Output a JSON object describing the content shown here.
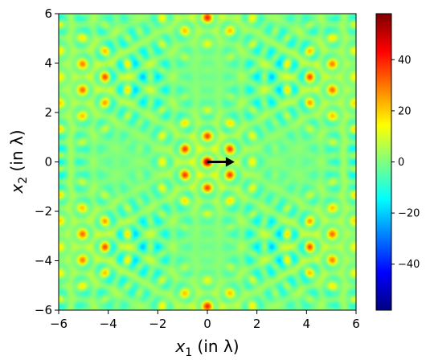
{
  "chart_data": {
    "type": "heatmap",
    "x_label": {
      "main": "x",
      "sub": "1",
      "unit": " (in λ)"
    },
    "y_label": {
      "main": "x",
      "sub": "2",
      "unit": " (in λ)"
    },
    "xlim": [
      -6,
      6
    ],
    "ylim": [
      -6,
      6
    ],
    "x_ticks": [
      -6,
      -4,
      -2,
      0,
      2,
      4,
      6
    ],
    "y_ticks": [
      -6,
      -4,
      -2,
      0,
      2,
      4,
      6
    ],
    "x_tick_labels": [
      "−6",
      "−4",
      "−2",
      "0",
      "2",
      "4",
      "6"
    ],
    "y_tick_labels": [
      "−6",
      "−4",
      "−2",
      "0",
      "2",
      "4",
      "6"
    ],
    "colormap": "jet",
    "colorbar": {
      "vmin": -58,
      "vmax": 58,
      "ticks": [
        -40,
        -20,
        0,
        20,
        40
      ],
      "tick_labels": [
        "−40",
        "−20",
        "0",
        "20",
        "40"
      ]
    },
    "arrow": {
      "from": [
        0,
        0
      ],
      "to": [
        1.1,
        0
      ],
      "color": "#000000"
    },
    "pattern": "hexagonal interference field with dipole-like red/blue lobes, values in approximately [-58, 58]"
  }
}
